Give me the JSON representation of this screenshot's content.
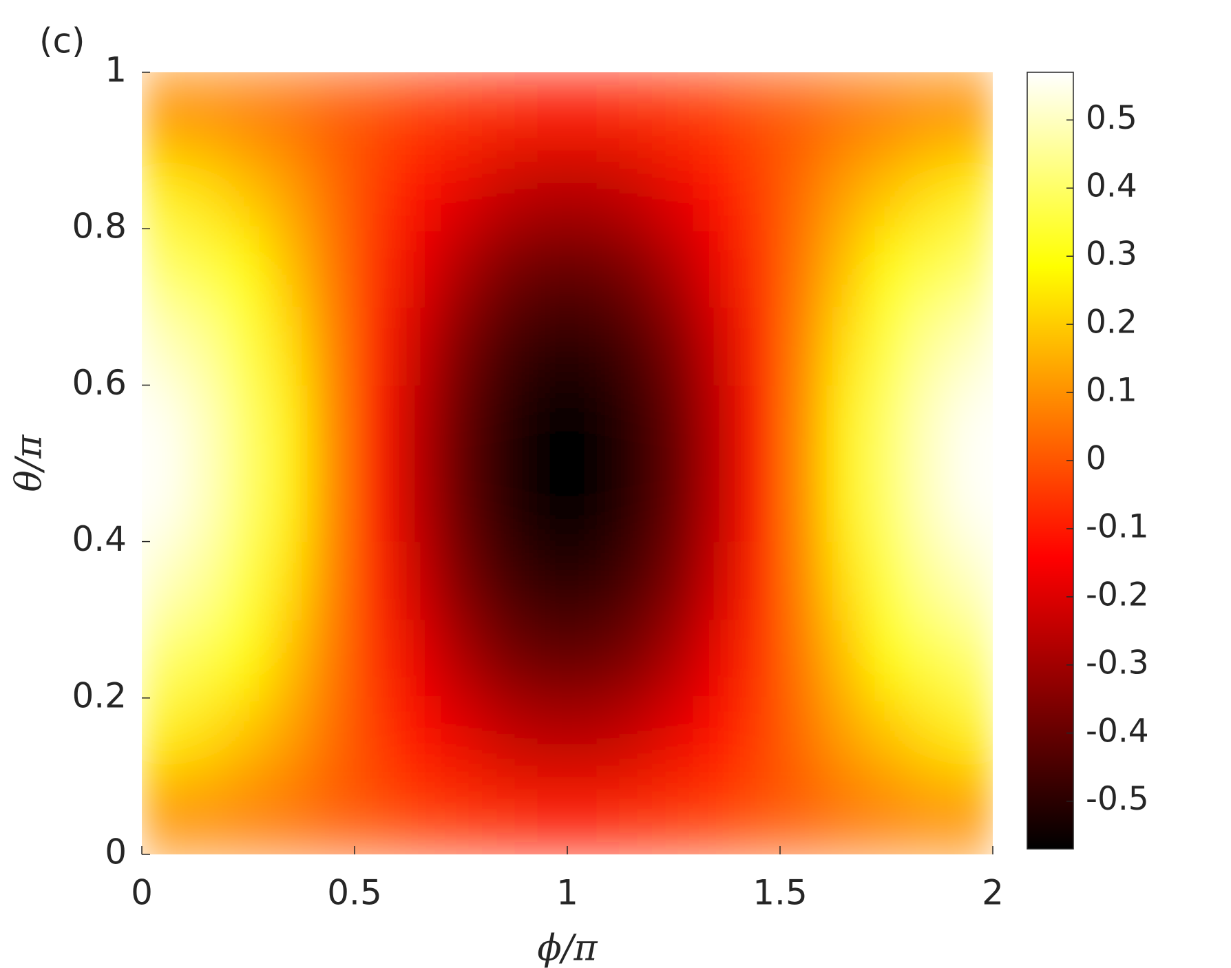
{
  "chart_data": {
    "type": "heatmap",
    "panel_label": "(c)",
    "x_label": "ϕ/π",
    "y_label": "θ/π",
    "x": [
      0.05,
      0.15,
      0.25,
      0.35,
      0.45,
      0.55,
      0.65,
      0.75,
      0.85,
      0.95,
      1.05,
      1.15,
      1.25,
      1.35,
      1.45,
      1.55,
      1.65,
      1.75,
      1.85,
      1.95
    ],
    "y": [
      0.05,
      0.15,
      0.25,
      0.35,
      0.45,
      0.55,
      0.65,
      0.75,
      0.85,
      0.95
    ],
    "z": [
      [
        0.09,
        0.08,
        0.06,
        0.04,
        0.01,
        -0.01,
        -0.04,
        -0.06,
        -0.08,
        -0.09,
        -0.09,
        -0.08,
        -0.06,
        -0.04,
        -0.01,
        0.01,
        0.04,
        0.06,
        0.08,
        0.09
      ],
      [
        0.26,
        0.23,
        0.18,
        0.12,
        0.04,
        -0.04,
        -0.12,
        -0.18,
        -0.23,
        -0.26,
        -0.26,
        -0.23,
        -0.18,
        -0.12,
        -0.04,
        0.04,
        0.12,
        0.18,
        0.23,
        0.26
      ],
      [
        0.4,
        0.36,
        0.28,
        0.18,
        0.06,
        -0.06,
        -0.18,
        -0.28,
        -0.36,
        -0.4,
        -0.4,
        -0.36,
        -0.28,
        -0.18,
        -0.06,
        0.06,
        0.18,
        0.28,
        0.36,
        0.4
      ],
      [
        0.5,
        0.45,
        0.36,
        0.23,
        0.08,
        -0.08,
        -0.23,
        -0.36,
        -0.45,
        -0.5,
        -0.5,
        -0.45,
        -0.36,
        -0.23,
        -0.08,
        0.08,
        0.23,
        0.36,
        0.45,
        0.5
      ],
      [
        0.56,
        0.5,
        0.4,
        0.26,
        0.09,
        -0.09,
        -0.26,
        -0.4,
        -0.5,
        -0.56,
        -0.56,
        -0.5,
        -0.4,
        -0.26,
        -0.09,
        0.09,
        0.26,
        0.4,
        0.5,
        0.56
      ],
      [
        0.56,
        0.5,
        0.4,
        0.26,
        0.09,
        -0.09,
        -0.26,
        -0.4,
        -0.5,
        -0.56,
        -0.56,
        -0.5,
        -0.4,
        -0.26,
        -0.09,
        0.09,
        0.26,
        0.4,
        0.5,
        0.56
      ],
      [
        0.5,
        0.45,
        0.36,
        0.23,
        0.08,
        -0.08,
        -0.23,
        -0.36,
        -0.45,
        -0.5,
        -0.5,
        -0.45,
        -0.36,
        -0.23,
        -0.08,
        0.08,
        0.23,
        0.36,
        0.45,
        0.5
      ],
      [
        0.4,
        0.36,
        0.28,
        0.18,
        0.06,
        -0.06,
        -0.18,
        -0.28,
        -0.36,
        -0.4,
        -0.4,
        -0.36,
        -0.28,
        -0.18,
        -0.06,
        0.06,
        0.18,
        0.28,
        0.36,
        0.4
      ],
      [
        0.26,
        0.23,
        0.18,
        0.12,
        0.04,
        -0.04,
        -0.12,
        -0.18,
        -0.23,
        -0.26,
        -0.26,
        -0.23,
        -0.18,
        -0.12,
        -0.04,
        0.04,
        0.12,
        0.18,
        0.23,
        0.26
      ],
      [
        0.09,
        0.08,
        0.06,
        0.04,
        0.01,
        -0.01,
        -0.04,
        -0.06,
        -0.08,
        -0.09,
        -0.09,
        -0.08,
        -0.06,
        -0.04,
        -0.01,
        0.01,
        0.04,
        0.06,
        0.08,
        0.09
      ]
    ],
    "xlim": [
      0,
      2
    ],
    "ylim": [
      0,
      1
    ],
    "xticks": [
      0,
      0.5,
      1,
      1.5,
      2
    ],
    "yticks": [
      0,
      0.2,
      0.4,
      0.6,
      0.8,
      1
    ],
    "colormap": "hot",
    "clim": [
      -0.57,
      0.57
    ],
    "cticks": [
      -0.5,
      -0.4,
      -0.3,
      -0.2,
      -0.1,
      0,
      0.1,
      0.2,
      0.3,
      0.4,
      0.5
    ]
  }
}
